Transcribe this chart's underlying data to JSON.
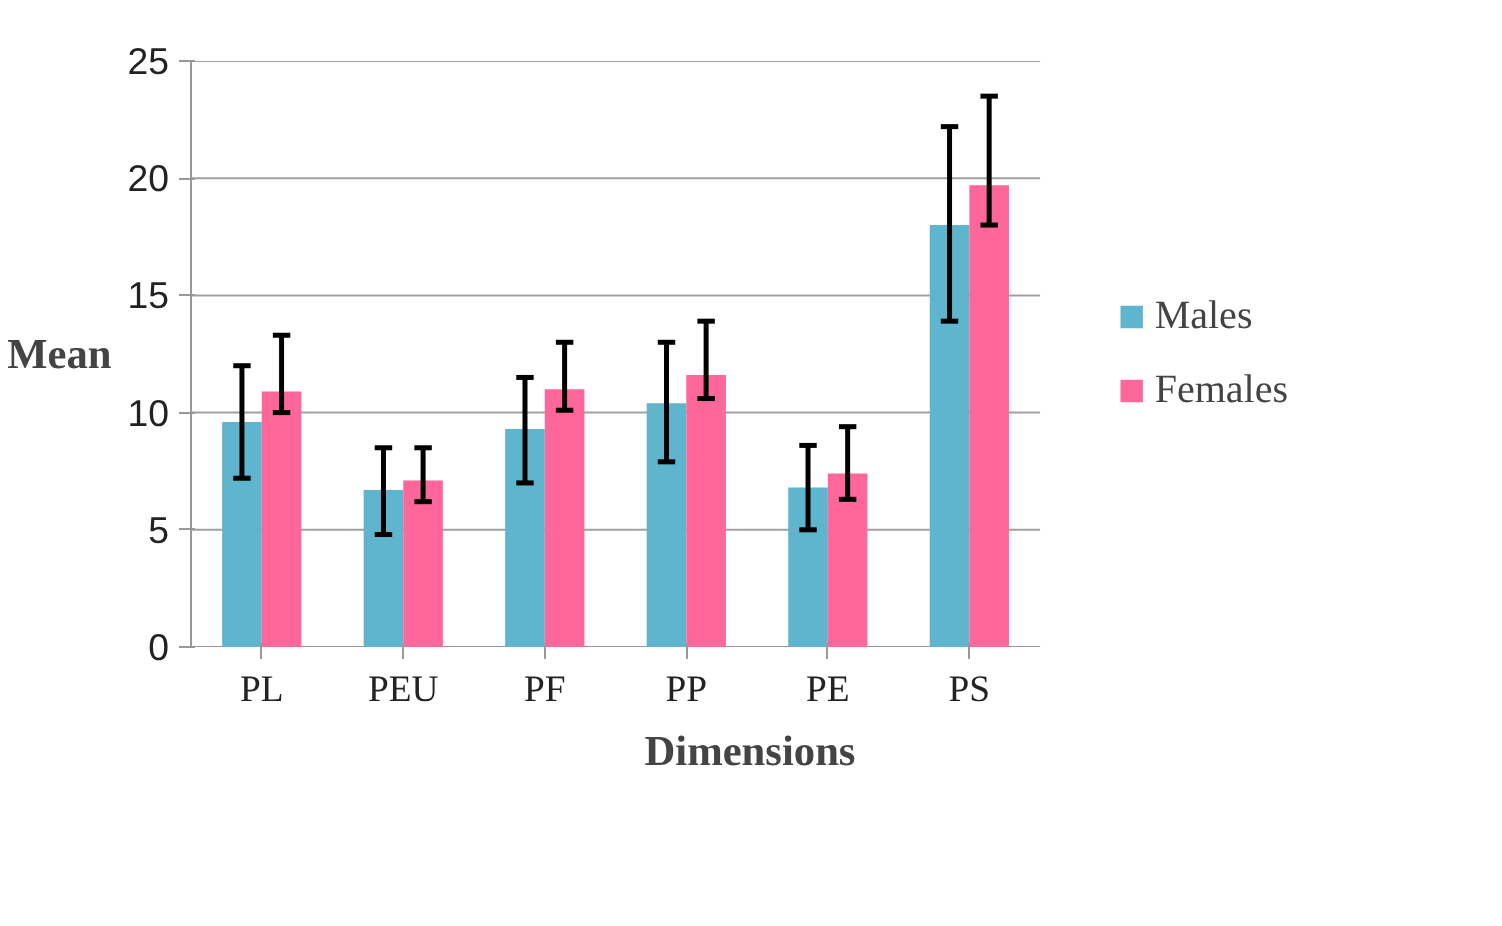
{
  "chart_data": {
    "type": "bar",
    "xlabel": "Dimensions",
    "ylabel": "Mean",
    "categories": [
      "PL",
      "PEU",
      "PF",
      "PP",
      "PE",
      "PS"
    ],
    "series": [
      {
        "name": "Males",
        "color": "#5eb5cd",
        "values": [
          9.6,
          6.7,
          9.3,
          10.4,
          6.8,
          18.0
        ],
        "errors": [
          [
            7.2,
            12.0
          ],
          [
            4.8,
            8.5
          ],
          [
            7.0,
            11.5
          ],
          [
            7.9,
            13.0
          ],
          [
            5.0,
            8.6
          ],
          [
            13.9,
            22.2
          ]
        ]
      },
      {
        "name": "Females",
        "color": "#ff6699",
        "values": [
          10.9,
          7.1,
          11.0,
          11.6,
          7.4,
          19.7
        ],
        "errors": [
          [
            10.0,
            13.3
          ],
          [
            6.2,
            8.5
          ],
          [
            10.1,
            13.0
          ],
          [
            10.6,
            13.9
          ],
          [
            6.3,
            9.4
          ],
          [
            18.0,
            23.5
          ]
        ]
      }
    ],
    "ylim": [
      0,
      25
    ],
    "yticks": [
      0,
      5,
      10,
      15,
      20,
      25
    ],
    "grid": "y",
    "legend": "right"
  }
}
